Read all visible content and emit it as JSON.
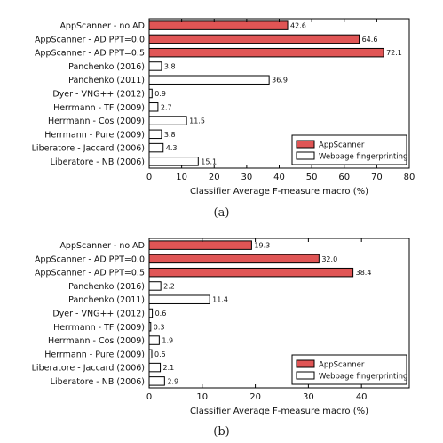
{
  "colors": {
    "appscanner": "#e05555",
    "webpage": "#ffffff",
    "stroke": "#000000"
  },
  "chart_data": [
    {
      "type": "bar",
      "orientation": "horizontal",
      "categories": [
        "AppScanner - no AD",
        "AppScanner - AD PPT=0.0",
        "AppScanner - AD PPT=0.5",
        "Panchenko (2016)",
        "Panchenko (2011)",
        "Dyer - VNG++ (2012)",
        "Herrmann - TF (2009)",
        "Herrmann - Cos (2009)",
        "Herrmann - Pure (2009)",
        "Liberatore - Jaccard (2006)",
        "Liberatore - NB (2006)"
      ],
      "values": [
        42.6,
        64.6,
        72.1,
        3.8,
        36.9,
        0.9,
        2.7,
        11.5,
        3.8,
        4.3,
        15.1
      ],
      "value_labels": [
        "42.6",
        "64.6",
        "72.1",
        "3.8",
        "36.9",
        "0.9",
        "2.7",
        "11.5",
        "3.8",
        "4.3",
        "15.1"
      ],
      "series_of_bar": [
        "AppScanner",
        "AppScanner",
        "AppScanner",
        "Webpage fingerprinting",
        "Webpage fingerprinting",
        "Webpage fingerprinting",
        "Webpage fingerprinting",
        "Webpage fingerprinting",
        "Webpage fingerprinting",
        "Webpage fingerprinting",
        "Webpage fingerprinting"
      ],
      "legend": [
        "AppScanner",
        "Webpage fingerprinting"
      ],
      "legend_position": "lower-right",
      "xlabel": "Classifier Average F-measure macro (%)",
      "xlim": [
        0,
        80
      ],
      "xticks": [
        0,
        10,
        20,
        30,
        40,
        50,
        60,
        70,
        80
      ],
      "grid": false,
      "caption": "(a)"
    },
    {
      "type": "bar",
      "orientation": "horizontal",
      "categories": [
        "AppScanner - no AD",
        "AppScanner - AD PPT=0.0",
        "AppScanner - AD PPT=0.5",
        "Panchenko (2016)",
        "Panchenko (2011)",
        "Dyer - VNG++ (2012)",
        "Herrmann - TF (2009)",
        "Herrmann - Cos (2009)",
        "Herrmann - Pure (2009)",
        "Liberatore - Jaccard (2006)",
        "Liberatore - NB (2006)"
      ],
      "values": [
        19.3,
        32.0,
        38.4,
        2.2,
        11.4,
        0.6,
        0.3,
        1.9,
        0.5,
        2.1,
        2.9
      ],
      "value_labels": [
        "19.3",
        "32.0",
        "38.4",
        "2.2",
        "11.4",
        "0.6",
        "0.3",
        "1.9",
        "0.5",
        "2.1",
        "2.9"
      ],
      "series_of_bar": [
        "AppScanner",
        "AppScanner",
        "AppScanner",
        "Webpage fingerprinting",
        "Webpage fingerprinting",
        "Webpage fingerprinting",
        "Webpage fingerprinting",
        "Webpage fingerprinting",
        "Webpage fingerprinting",
        "Webpage fingerprinting",
        "Webpage fingerprinting"
      ],
      "legend": [
        "AppScanner",
        "Webpage fingerprinting"
      ],
      "legend_position": "lower-right",
      "xlabel": "Classifier Average F-measure macro (%)",
      "xlim": [
        0,
        49
      ],
      "xticks": [
        0,
        10,
        20,
        30,
        40
      ],
      "grid": false,
      "caption": "(b)"
    }
  ]
}
